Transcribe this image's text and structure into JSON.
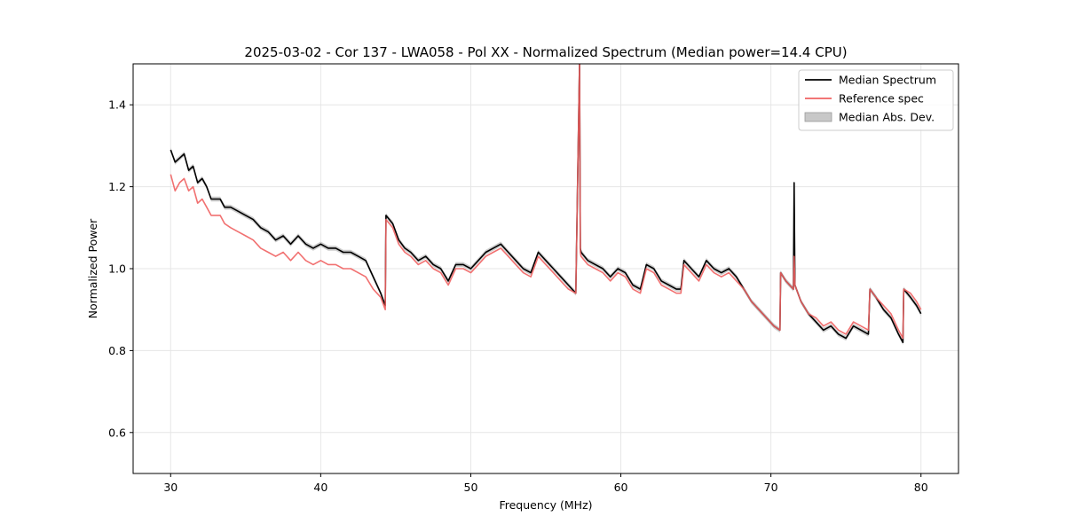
{
  "chart_data": {
    "type": "line",
    "title": "2025-03-02 - Cor 137 - LWA058 - Pol XX - Normalized Spectrum (Median power=14.4 CPU)",
    "xlabel": "Frequency (MHz)",
    "ylabel": "Normalized Power",
    "xlim": [
      27.5,
      82.5
    ],
    "ylim": [
      0.5,
      1.5
    ],
    "x_ticks": [
      30,
      40,
      50,
      60,
      70,
      80
    ],
    "x_tick_labels": [
      "30",
      "40",
      "50",
      "60",
      "70",
      "80"
    ],
    "y_ticks": [
      0.6,
      0.8,
      1.0,
      1.2,
      1.4
    ],
    "y_tick_labels": [
      "0.6",
      "0.8",
      "1.0",
      "1.2",
      "1.4"
    ],
    "grid": true,
    "legend_position": "top-right",
    "legend": [
      {
        "label": "Median Spectrum",
        "kind": "line",
        "color": "#000000"
      },
      {
        "label": "Reference spec",
        "kind": "line",
        "color": "#f06262"
      },
      {
        "label": "Median Abs. Dev.",
        "kind": "patch",
        "color": "#c8c8c8"
      }
    ],
    "series": [
      {
        "name": "Median Spectrum",
        "color": "#000000",
        "x": [
          30.0,
          30.3,
          30.6,
          30.9,
          31.2,
          31.5,
          31.8,
          32.1,
          32.4,
          32.7,
          33.0,
          33.3,
          33.6,
          34.0,
          34.5,
          35.0,
          35.5,
          36.0,
          36.5,
          37.0,
          37.5,
          38.0,
          38.5,
          39.0,
          39.5,
          40.0,
          40.5,
          41.0,
          41.5,
          42.0,
          42.5,
          43.0,
          43.5,
          44.0,
          44.3,
          44.35,
          44.8,
          45.2,
          45.6,
          46.0,
          46.5,
          47.0,
          47.5,
          48.0,
          48.5,
          49.0,
          49.5,
          50.0,
          50.5,
          51.0,
          51.5,
          52.0,
          52.5,
          53.0,
          53.5,
          54.0,
          54.5,
          55.0,
          55.5,
          56.0,
          56.5,
          57.0,
          57.25,
          57.3,
          57.35,
          57.8,
          58.3,
          58.8,
          59.3,
          59.8,
          60.3,
          60.8,
          61.3,
          61.7,
          62.2,
          62.7,
          63.2,
          63.7,
          64.0,
          64.2,
          64.7,
          65.2,
          65.7,
          66.2,
          66.7,
          67.2,
          67.7,
          68.2,
          68.7,
          69.2,
          69.7,
          70.2,
          70.6,
          70.65,
          71.0,
          71.5,
          71.55,
          71.6,
          72.0,
          72.5,
          73.0,
          73.5,
          74.0,
          74.5,
          75.0,
          75.5,
          76.0,
          76.5,
          76.6,
          77.0,
          77.5,
          78.0,
          78.5,
          78.8,
          78.85,
          79.3,
          79.7,
          80.0
        ],
        "y": [
          1.29,
          1.26,
          1.27,
          1.28,
          1.24,
          1.25,
          1.21,
          1.22,
          1.2,
          1.17,
          1.17,
          1.17,
          1.15,
          1.15,
          1.14,
          1.13,
          1.12,
          1.1,
          1.09,
          1.07,
          1.08,
          1.06,
          1.08,
          1.06,
          1.05,
          1.06,
          1.05,
          1.05,
          1.04,
          1.04,
          1.03,
          1.02,
          0.98,
          0.94,
          0.91,
          1.13,
          1.11,
          1.07,
          1.05,
          1.04,
          1.02,
          1.03,
          1.01,
          1.0,
          0.97,
          1.01,
          1.01,
          1.0,
          1.02,
          1.04,
          1.05,
          1.06,
          1.04,
          1.02,
          1.0,
          0.99,
          1.04,
          1.02,
          1.0,
          0.98,
          0.96,
          0.94,
          1.5,
          1.05,
          1.04,
          1.02,
          1.01,
          1.0,
          0.98,
          1.0,
          0.99,
          0.96,
          0.95,
          1.01,
          1.0,
          0.97,
          0.96,
          0.95,
          0.95,
          1.02,
          1.0,
          0.98,
          1.02,
          1.0,
          0.99,
          1.0,
          0.98,
          0.95,
          0.92,
          0.9,
          0.88,
          0.86,
          0.85,
          0.99,
          0.97,
          0.95,
          1.21,
          0.96,
          0.92,
          0.89,
          0.87,
          0.85,
          0.86,
          0.84,
          0.83,
          0.86,
          0.85,
          0.84,
          0.95,
          0.93,
          0.9,
          0.88,
          0.84,
          0.82,
          0.95,
          0.93,
          0.91,
          0.89
        ]
      },
      {
        "name": "Reference spec",
        "color": "#f06262",
        "x": [
          30.0,
          30.3,
          30.6,
          30.9,
          31.2,
          31.5,
          31.8,
          32.1,
          32.4,
          32.7,
          33.0,
          33.3,
          33.6,
          34.0,
          34.5,
          35.0,
          35.5,
          36.0,
          36.5,
          37.0,
          37.5,
          38.0,
          38.5,
          39.0,
          39.5,
          40.0,
          40.5,
          41.0,
          41.5,
          42.0,
          42.5,
          43.0,
          43.5,
          44.0,
          44.3,
          44.35,
          44.8,
          45.2,
          45.6,
          46.0,
          46.5,
          47.0,
          47.5,
          48.0,
          48.5,
          49.0,
          49.5,
          50.0,
          50.5,
          51.0,
          51.5,
          52.0,
          52.5,
          53.0,
          53.5,
          54.0,
          54.5,
          55.0,
          55.5,
          56.0,
          56.5,
          57.0,
          57.25,
          57.3,
          57.35,
          57.8,
          58.3,
          58.8,
          59.3,
          59.8,
          60.3,
          60.8,
          61.3,
          61.7,
          62.2,
          62.7,
          63.2,
          63.7,
          64.0,
          64.2,
          64.7,
          65.2,
          65.7,
          66.2,
          66.7,
          67.2,
          67.7,
          68.2,
          68.7,
          69.2,
          69.7,
          70.2,
          70.6,
          70.65,
          71.0,
          71.5,
          71.55,
          71.6,
          72.0,
          72.5,
          73.0,
          73.5,
          74.0,
          74.5,
          75.0,
          75.5,
          76.0,
          76.5,
          76.6,
          77.0,
          77.5,
          78.0,
          78.5,
          78.8,
          78.85,
          79.3,
          79.7,
          80.0
        ],
        "y": [
          1.23,
          1.19,
          1.21,
          1.22,
          1.19,
          1.2,
          1.16,
          1.17,
          1.15,
          1.13,
          1.13,
          1.13,
          1.11,
          1.1,
          1.09,
          1.08,
          1.07,
          1.05,
          1.04,
          1.03,
          1.04,
          1.02,
          1.04,
          1.02,
          1.01,
          1.02,
          1.01,
          1.01,
          1.0,
          1.0,
          0.99,
          0.98,
          0.95,
          0.93,
          0.9,
          1.12,
          1.1,
          1.06,
          1.04,
          1.03,
          1.01,
          1.02,
          1.0,
          0.99,
          0.96,
          1.0,
          1.0,
          0.99,
          1.01,
          1.03,
          1.04,
          1.05,
          1.03,
          1.01,
          0.99,
          0.98,
          1.03,
          1.01,
          0.99,
          0.97,
          0.95,
          0.94,
          1.5,
          1.04,
          1.03,
          1.01,
          1.0,
          0.99,
          0.97,
          0.99,
          0.98,
          0.95,
          0.94,
          1.0,
          0.99,
          0.96,
          0.95,
          0.94,
          0.94,
          1.01,
          0.99,
          0.97,
          1.01,
          0.99,
          0.98,
          0.99,
          0.97,
          0.95,
          0.92,
          0.9,
          0.88,
          0.86,
          0.85,
          0.99,
          0.97,
          0.95,
          1.03,
          0.96,
          0.92,
          0.89,
          0.88,
          0.86,
          0.87,
          0.85,
          0.84,
          0.87,
          0.86,
          0.85,
          0.95,
          0.93,
          0.91,
          0.89,
          0.85,
          0.83,
          0.95,
          0.94,
          0.92,
          0.9
        ]
      }
    ],
    "mad_band": {
      "name": "Median Abs. Dev.",
      "color": "#c8c8c8",
      "halfwidth": 0.006
    }
  }
}
